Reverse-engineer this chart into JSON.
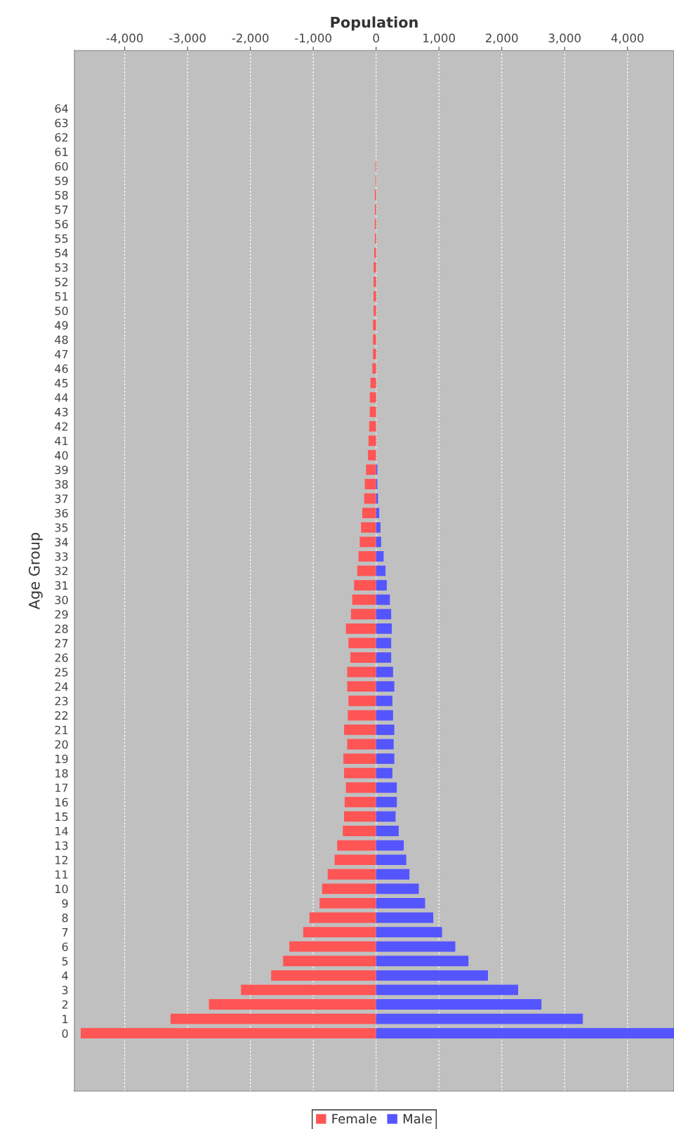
{
  "chart_data": {
    "type": "bar",
    "orientation": "horizontal",
    "xlabel": "Population",
    "ylabel": "Age Group",
    "categories": [
      "64",
      "63",
      "62",
      "61",
      "60",
      "59",
      "58",
      "57",
      "56",
      "55",
      "54",
      "53",
      "52",
      "51",
      "50",
      "49",
      "48",
      "47",
      "46",
      "45",
      "44",
      "43",
      "42",
      "41",
      "40",
      "39",
      "38",
      "37",
      "36",
      "35",
      "34",
      "33",
      "32",
      "31",
      "30",
      "29",
      "28",
      "27",
      "26",
      "25",
      "24",
      "23",
      "22",
      "21",
      "20",
      "19",
      "18",
      "17",
      "16",
      "15",
      "14",
      "13",
      "12",
      "11",
      "10",
      "9",
      "8",
      "7",
      "6",
      "5",
      "4",
      "3",
      "2",
      "1",
      "0"
    ],
    "series": [
      {
        "name": "Female",
        "color": "#ff5555",
        "values": [
          0,
          0,
          0,
          0,
          -10,
          -10,
          -20,
          -20,
          -20,
          -20,
          -30,
          -40,
          -40,
          -40,
          -40,
          -50,
          -50,
          -50,
          -60,
          -90,
          -100,
          -100,
          -110,
          -120,
          -130,
          -160,
          -180,
          -190,
          -220,
          -240,
          -260,
          -280,
          -300,
          -350,
          -380,
          -400,
          -480,
          -440,
          -410,
          -460,
          -460,
          -440,
          -450,
          -510,
          -460,
          -520,
          -510,
          -480,
          -500,
          -510,
          -530,
          -620,
          -660,
          -770,
          -860,
          -900,
          -1060,
          -1160,
          -1380,
          -1480,
          -1670,
          -2150,
          -2660,
          -3270,
          -4700
        ]
      },
      {
        "name": "Male",
        "color": "#5555ff",
        "values": [
          0,
          0,
          0,
          0,
          0,
          0,
          0,
          0,
          0,
          0,
          0,
          0,
          0,
          0,
          0,
          0,
          0,
          0,
          0,
          0,
          0,
          0,
          0,
          0,
          0,
          20,
          20,
          30,
          50,
          70,
          80,
          120,
          150,
          170,
          220,
          240,
          250,
          240,
          240,
          270,
          290,
          260,
          270,
          290,
          280,
          290,
          260,
          330,
          330,
          310,
          360,
          440,
          480,
          530,
          680,
          780,
          910,
          1050,
          1260,
          1470,
          1780,
          2260,
          2630,
          3290,
          4740
        ]
      }
    ],
    "stacked": true,
    "xlim": [
      -4800,
      4740
    ],
    "xticks": [
      {
        "value": -4000,
        "label": "-4,000"
      },
      {
        "value": -3000,
        "label": "-3,000"
      },
      {
        "value": -2000,
        "label": "-2,000"
      },
      {
        "value": -1000,
        "label": "-1,000"
      },
      0,
      {
        "value": 1000,
        "label": "1,000"
      },
      {
        "value": 2000,
        "label": "2,000"
      },
      {
        "value": 3000,
        "label": "3,000"
      },
      {
        "value": 4000,
        "label": "4,000"
      }
    ],
    "grid": "x",
    "legend": "bottom"
  }
}
